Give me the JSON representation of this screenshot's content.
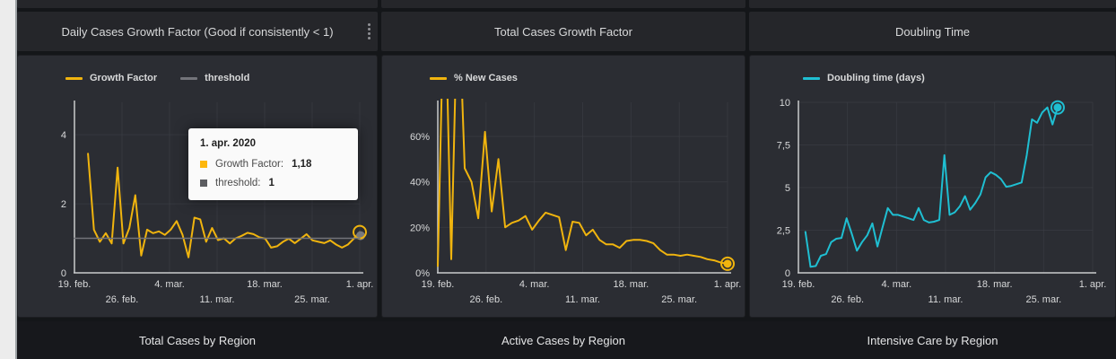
{
  "bottom_titles": [
    "Total Cases by Region",
    "Active Cases by Region",
    "Intensive Care by Region"
  ],
  "tooltip": {
    "date": "1. apr. 2020",
    "rows": [
      {
        "label": "Growth Factor:",
        "value": "1,18",
        "color": "#fdb70d"
      },
      {
        "label": "threshold:",
        "value": "1",
        "color": "#5c5d61"
      }
    ]
  },
  "colors": {
    "yellow": "#f0b40e",
    "cyan": "#1fbfd2",
    "gray_threshold": "#73747a",
    "panel_bg": "#2b2d33",
    "band_bg": "#25262a",
    "page_bg": "#141619",
    "text": "#d8d9da"
  },
  "panels": [
    {
      "title": "Daily Cases Growth Factor (Good if consistently < 1)",
      "menu_icon": "kebab-menu-icon",
      "legend": [
        {
          "label": "Growth Factor",
          "color": "#f0b40e"
        },
        {
          "label": "threshold",
          "color": "#73747a"
        }
      ],
      "chart_data": {
        "type": "line",
        "title": "Daily Cases Growth Factor",
        "x_tick_labels": [
          "19. feb.",
          "26. feb.",
          "4. mar.",
          "11. mar.",
          "18. mar.",
          "25. mar.",
          "1. apr."
        ],
        "x_range_days": [
          0,
          42
        ],
        "ytick_values": [
          0,
          2,
          4
        ],
        "ytick_labels": [
          "0",
          "2",
          "4"
        ],
        "ylim": [
          0,
          4.94
        ],
        "grid": true,
        "legend_position": "top-left",
        "series": [
          {
            "name": "Growth Factor",
            "color": "#f0b40e",
            "width": 2,
            "start_day": 2,
            "end_day": 42,
            "values": [
              3.45,
              1.25,
              0.9,
              1.15,
              0.85,
              3.05,
              0.85,
              1.3,
              2.25,
              0.5,
              1.25,
              1.15,
              1.2,
              1.1,
              1.25,
              1.5,
              1.1,
              0.45,
              1.6,
              1.55,
              0.9,
              1.3,
              0.95,
              1.0,
              0.85,
              1.0,
              1.07,
              1.16,
              1.12,
              1.03,
              0.99,
              0.73,
              0.77,
              0.9,
              0.99,
              0.86,
              0.99,
              1.12,
              0.94,
              0.9,
              0.86,
              0.94,
              0.82,
              0.73,
              0.82,
              0.99,
              1.18
            ],
            "end_marker": {
              "ring_color": "#f0b40e",
              "dot_color": "#77787d"
            }
          },
          {
            "name": "threshold",
            "color": "#73747a",
            "width": 1.5,
            "start_day": 0,
            "end_day": 42,
            "values": [
              1,
              1
            ]
          }
        ]
      }
    },
    {
      "title": "Total Cases Growth Factor",
      "legend": [
        {
          "label": "% New Cases",
          "color": "#f0b40e"
        }
      ],
      "chart_data": {
        "type": "line",
        "title": "Total Cases Growth Factor",
        "x_tick_labels": [
          "19. feb.",
          "26. feb.",
          "4. mar.",
          "11. mar.",
          "18. mar.",
          "25. mar.",
          "1. apr."
        ],
        "x_range_days": [
          0,
          42
        ],
        "ytick_values": [
          0,
          20,
          40,
          60
        ],
        "ytick_labels": [
          "0%",
          "20%",
          "40%",
          "60%"
        ],
        "ylim": [
          0,
          75
        ],
        "grid": true,
        "legend_position": "top-left",
        "series": [
          {
            "name": "% New Cases",
            "color": "#f0b40e",
            "width": 2,
            "start_day": 0,
            "end_day": 42,
            "values": [
              3,
              135,
              6,
              130,
              46,
              40,
              24,
              62,
              27,
              50,
              20,
              22,
              23,
              25,
              19,
              23,
              26.5,
              25.5,
              24.5,
              10,
              22.5,
              22,
              16.5,
              19,
              14.5,
              12.5,
              12.5,
              11,
              14,
              14.5,
              14.5,
              14,
              13,
              10,
              8,
              8,
              7.5,
              8,
              7.5,
              7,
              6,
              5.5,
              4.5,
              4
            ],
            "end_marker": {
              "ring_color": "#f0b40e",
              "dot_color": "#f0b40e"
            }
          }
        ]
      }
    },
    {
      "title": "Doubling Time",
      "legend": [
        {
          "label": "Doubling time (days)",
          "color": "#1fbfd2"
        }
      ],
      "chart_data": {
        "type": "line",
        "title": "Doubling Time",
        "x_tick_labels": [
          "19. feb.",
          "26. feb.",
          "4. mar.",
          "11. mar.",
          "18. mar.",
          "25. mar.",
          "1. apr."
        ],
        "x_range_days": [
          0,
          42
        ],
        "ytick_values": [
          0,
          2.5,
          5,
          7.5,
          10
        ],
        "ytick_labels": [
          "0",
          "2,5",
          "5",
          "7,5",
          "10"
        ],
        "ylim": [
          0,
          10
        ],
        "grid": true,
        "legend_position": "top-left",
        "series": [
          {
            "name": "Doubling time (days)",
            "color": "#1fbfd2",
            "width": 2,
            "start_day": 1,
            "end_day": 37,
            "values": [
              2.4,
              0.35,
              0.4,
              1.0,
              1.1,
              1.8,
              2.0,
              2.05,
              3.2,
              2.3,
              1.3,
              1.8,
              2.2,
              2.9,
              1.55,
              2.7,
              3.8,
              3.4,
              3.4,
              3.3,
              3.2,
              3.1,
              3.8,
              3.1,
              2.95,
              3.0,
              3.1,
              6.9,
              3.4,
              3.55,
              3.9,
              4.5,
              3.7,
              4.1,
              4.6,
              5.6,
              5.9,
              5.75,
              5.5,
              5.05,
              5.1,
              5.2,
              5.3,
              6.9,
              9.0,
              8.8,
              9.4,
              9.7,
              8.7,
              9.7
            ],
            "end_marker": {
              "ring_color": "#1fbfd2",
              "dot_color": "#1fbfd2"
            }
          }
        ]
      }
    }
  ]
}
